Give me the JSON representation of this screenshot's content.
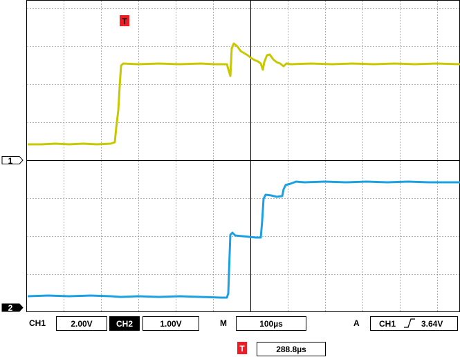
{
  "trigger_marker": {
    "label": "T",
    "color": "#ee1c24"
  },
  "channels": [
    {
      "marker": "1",
      "color": "#c7c800"
    },
    {
      "marker": "2",
      "color": "#1ba1e2"
    }
  ],
  "status_bar": {
    "ch1_label": "CH1",
    "ch1_scale": "2.00V",
    "ch2_label": "CH2",
    "ch2_scale": "1.00V",
    "m_label": "M",
    "m_timebase": "100µs",
    "a_label": "A",
    "a_source": "CH1",
    "a_slope_icon": "rising-edge-icon",
    "a_level": "3.64V"
  },
  "trigger_position": {
    "label": "T",
    "value": "288.8µs"
  }
}
